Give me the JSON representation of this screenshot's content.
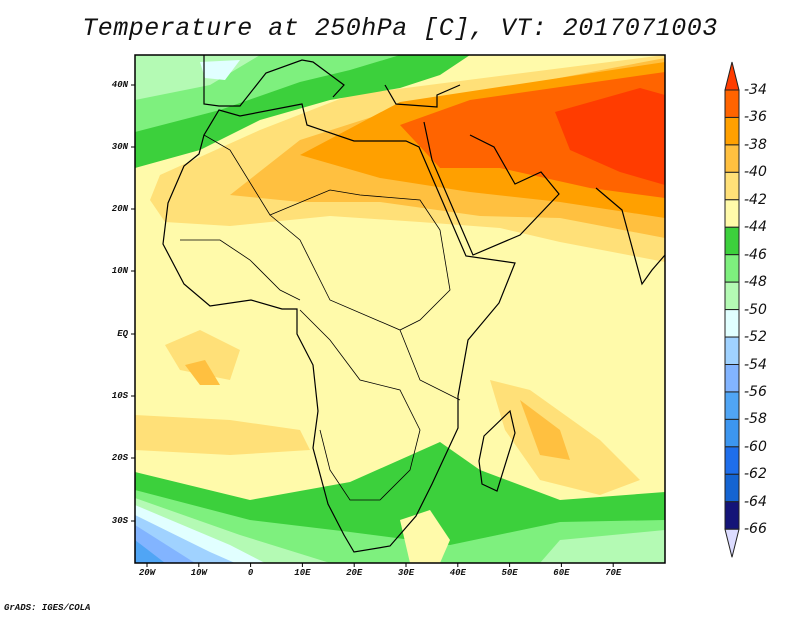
{
  "title": "Temperature at 250hPa [C], VT: 2017071003",
  "footer": "GrADS: IGES/COLA",
  "map": {
    "lat_labels": [
      "40N",
      "30N",
      "20N",
      "10N",
      "EQ",
      "10S",
      "20S",
      "30S"
    ],
    "lon_labels": [
      "20W",
      "10W",
      "0",
      "10E",
      "20E",
      "30E",
      "40E",
      "50E",
      "60E",
      "70E"
    ],
    "variable": "Temperature",
    "level": "250hPa",
    "units": "C",
    "valid_time": "2017071003"
  },
  "colorbar": {
    "labels": [
      "-34",
      "-36",
      "-38",
      "-40",
      "-42",
      "-44",
      "-46",
      "-48",
      "-50",
      "-52",
      "-54",
      "-56",
      "-58",
      "-60",
      "-62",
      "-64",
      "-66"
    ],
    "top_arrow_color": "#ff3c00",
    "bottom_arrow_color": "#dcdcff",
    "colors": [
      "#ff6400",
      "#ffa000",
      "#ffc040",
      "#ffe078",
      "#fffaaa",
      "#3cd03c",
      "#7ef07e",
      "#b4fab4",
      "#e1ffff",
      "#a0d2ff",
      "#82b4ff",
      "#50a5f5",
      "#3c96f0",
      "#1e6eeb",
      "#1464d2",
      "#141478"
    ]
  }
}
